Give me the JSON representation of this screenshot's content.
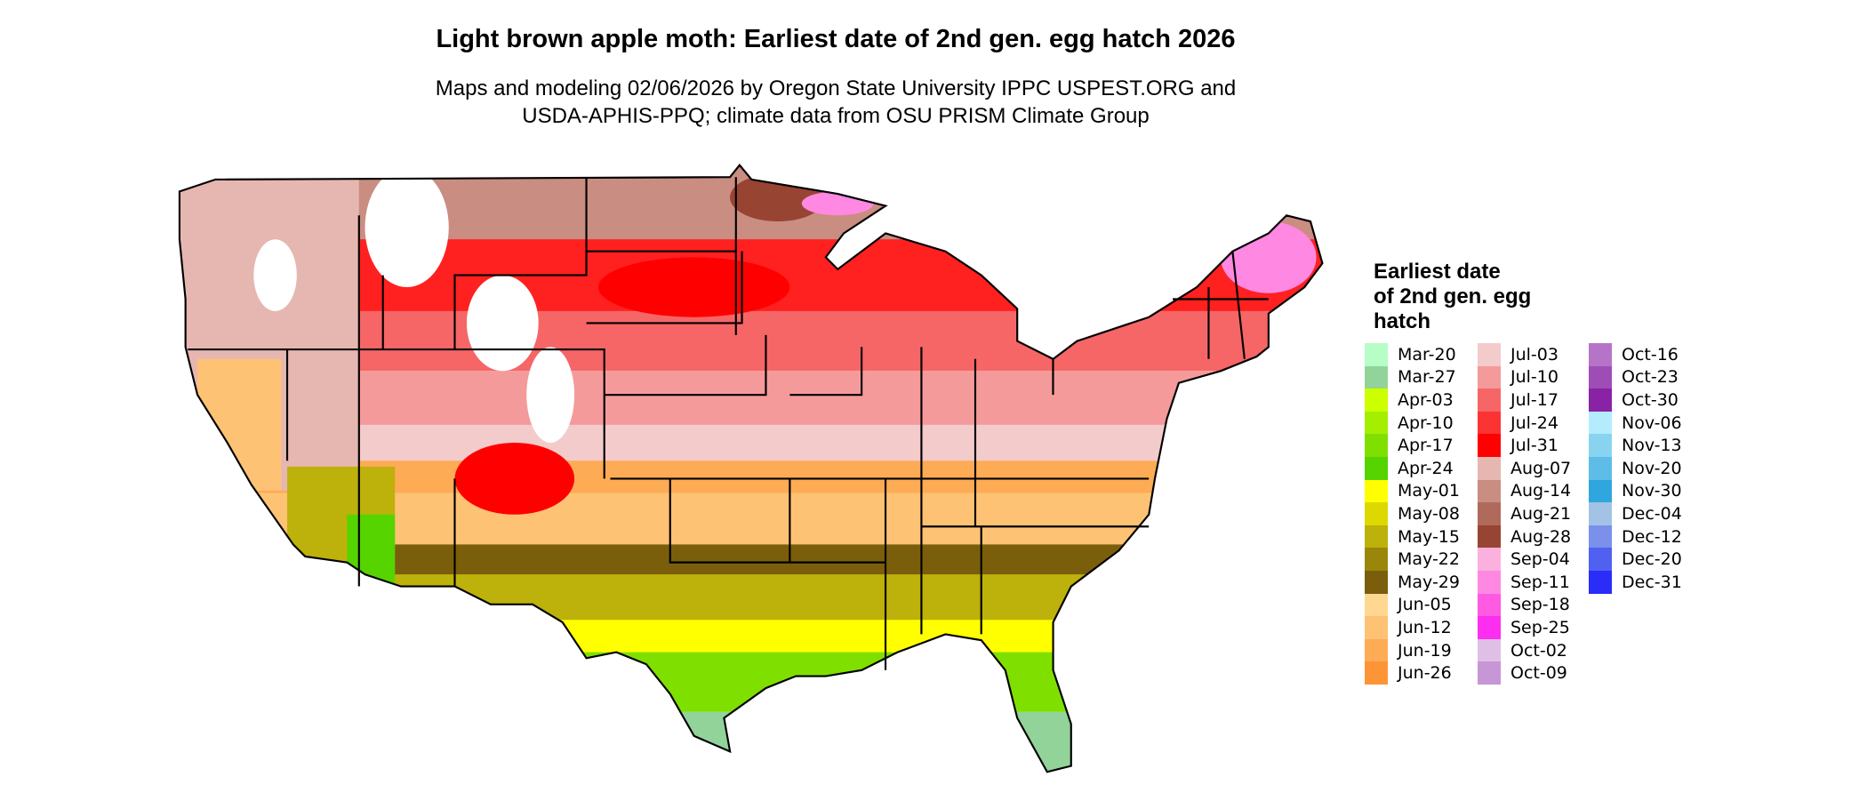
{
  "title": "Light brown apple moth: Earliest date of 2nd gen. egg hatch 2026",
  "subtitle_line1": "Maps and modeling 02/06/2026 by Oregon State University IPPC USPEST.ORG and",
  "subtitle_line2": "USDA-APHIS-PPQ; climate data from OSU PRISM Climate Group",
  "legend": {
    "title_lines": [
      "Earliest date",
      "of 2nd gen. egg",
      "hatch"
    ],
    "columns": [
      [
        {
          "label": "Mar-20",
          "color": "#b6fdc6"
        },
        {
          "label": "Mar-27",
          "color": "#92d39a"
        },
        {
          "label": "Apr-03",
          "color": "#ccff00"
        },
        {
          "label": "Apr-10",
          "color": "#a4ee00"
        },
        {
          "label": "Apr-17",
          "color": "#7fe000"
        },
        {
          "label": "Apr-24",
          "color": "#55d400"
        },
        {
          "label": "May-01",
          "color": "#ffff00"
        },
        {
          "label": "May-08",
          "color": "#ddd900"
        },
        {
          "label": "May-15",
          "color": "#bdb10b"
        },
        {
          "label": "May-22",
          "color": "#9a870a"
        },
        {
          "label": "May-29",
          "color": "#7a5e0b"
        },
        {
          "label": "Jun-05",
          "color": "#fed890"
        },
        {
          "label": "Jun-12",
          "color": "#fec274"
        },
        {
          "label": "Jun-19",
          "color": "#fdab55"
        },
        {
          "label": "Jun-26",
          "color": "#fd9536"
        }
      ],
      [
        {
          "label": "Jul-03",
          "color": "#f3cbcb"
        },
        {
          "label": "Jul-10",
          "color": "#f49a9a"
        },
        {
          "label": "Jul-17",
          "color": "#f66666"
        },
        {
          "label": "Jul-24",
          "color": "#fc3333"
        },
        {
          "label": "Jul-31",
          "color": "#ff0000"
        },
        {
          "label": "Aug-07",
          "color": "#e6b7b0"
        },
        {
          "label": "Aug-14",
          "color": "#c98d81"
        },
        {
          "label": "Aug-21",
          "color": "#b06a5c"
        },
        {
          "label": "Aug-28",
          "color": "#984432"
        },
        {
          "label": "Sep-04",
          "color": "#fbb0de"
        },
        {
          "label": "Sep-11",
          "color": "#fe88e2"
        },
        {
          "label": "Sep-18",
          "color": "#fe5ae2"
        },
        {
          "label": "Sep-25",
          "color": "#fe2ef0"
        },
        {
          "label": "Oct-02",
          "color": "#e0bfe6"
        },
        {
          "label": "Oct-09",
          "color": "#c796d6"
        }
      ],
      [
        {
          "label": "Oct-16",
          "color": "#b574c8"
        },
        {
          "label": "Oct-23",
          "color": "#9e4db6"
        },
        {
          "label": "Oct-30",
          "color": "#8a22a6"
        },
        {
          "label": "Nov-06",
          "color": "#b4ecfd"
        },
        {
          "label": "Nov-13",
          "color": "#88d4f0"
        },
        {
          "label": "Nov-20",
          "color": "#5ebde8"
        },
        {
          "label": "Nov-30",
          "color": "#2fa6dd"
        },
        {
          "label": "Dec-04",
          "color": "#a2c3e6"
        },
        {
          "label": "Dec-12",
          "color": "#7a90ea"
        },
        {
          "label": "Dec-20",
          "color": "#5060f0"
        },
        {
          "label": "Dec-31",
          "color": "#2a2cf8"
        }
      ]
    ]
  }
}
